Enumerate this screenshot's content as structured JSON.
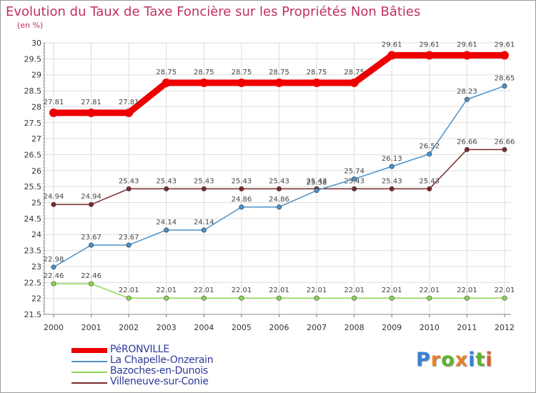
{
  "title": "Evolution du Taux de Taxe Foncière sur les Propriétés Non Bâties",
  "unit": "(en %)",
  "logo": {
    "letters": [
      "P",
      "r",
      "o",
      "x",
      "i",
      "t",
      "i"
    ],
    "colors": [
      "#3a7fd5",
      "#e8802a",
      "#5fb233",
      "#e8802a",
      "#3a7fd5",
      "#5fb233",
      "#e25a2a"
    ]
  },
  "chart_data": {
    "type": "line",
    "title": "Evolution du Taux de Taxe Foncière sur les Propriétés Non Bâties",
    "ylabel": "(en %)",
    "xlabel": "",
    "x": [
      "2000",
      "2001",
      "2002",
      "2003",
      "2004",
      "2005",
      "2006",
      "2007",
      "2008",
      "2009",
      "2010",
      "2011",
      "2012"
    ],
    "ylim": [
      21.5,
      30
    ],
    "yticks": [
      "21.5",
      "22",
      "22.5",
      "23",
      "23.5",
      "24",
      "24.5",
      "25",
      "25.5",
      "26",
      "26.5",
      "27",
      "27.5",
      "28",
      "28.5",
      "29",
      "29.5",
      "30"
    ],
    "grid": true,
    "series": [
      {
        "name": "PéRONVILLE",
        "color": "#ee0000",
        "values": [
          27.81,
          27.81,
          27.81,
          28.75,
          28.75,
          28.75,
          28.75,
          28.75,
          28.75,
          29.61,
          29.61,
          29.61,
          29.61
        ],
        "labels": [
          "27.81",
          "27.81",
          "27.81",
          "28.75",
          "28.75",
          "28.75",
          "28.75",
          "28.75",
          "28.75",
          "29.61",
          "29.61",
          "29.61",
          "29.61"
        ]
      },
      {
        "name": "La Chapelle-Onzerain",
        "color": "#4a90c8",
        "values": [
          22.98,
          23.67,
          23.67,
          24.14,
          24.14,
          24.86,
          24.86,
          25.38,
          25.74,
          26.13,
          26.52,
          28.23,
          28.65
        ],
        "labels": [
          "22.98",
          "23.67",
          "23.67",
          "24.14",
          "24.14",
          "24.86",
          "24.86",
          "25.38",
          "25.74",
          "26.13",
          "26.52",
          "28.23",
          "28.65"
        ]
      },
      {
        "name": "Bazoches-en-Dunois",
        "color": "#8ed653",
        "values": [
          22.46,
          22.46,
          22.01,
          22.01,
          22.01,
          22.01,
          22.01,
          22.01,
          22.01,
          22.01,
          22.01,
          22.01,
          22.01
        ],
        "labels": [
          "22.46",
          "22.46",
          "22.01",
          "22.01",
          "22.01",
          "22.01",
          "22.01",
          "22.01",
          "22.01",
          "22.01",
          "22.01",
          "22.01",
          "22.01"
        ]
      },
      {
        "name": "Villeneuve-sur-Conie",
        "color": "#7a2a2a",
        "values": [
          24.94,
          24.94,
          25.43,
          25.43,
          25.43,
          25.43,
          25.43,
          25.43,
          25.43,
          25.43,
          25.43,
          26.66,
          26.66
        ],
        "labels": [
          "24.94",
          "24.94",
          "25.43",
          "25.43",
          "25.43",
          "25.43",
          "25.43",
          "25.43",
          "25.43",
          "25.43",
          "25.43",
          "26.66",
          "26.66"
        ]
      }
    ]
  }
}
